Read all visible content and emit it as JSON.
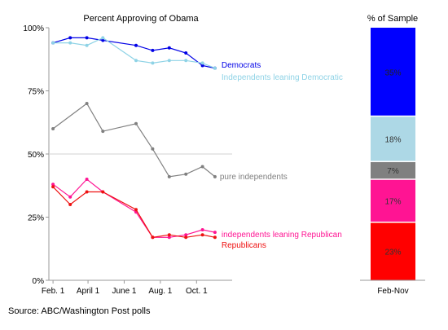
{
  "chart_data": [
    {
      "type": "line",
      "title": "Percent Approving of Obama",
      "xlabel": "",
      "ylabel": "",
      "x_tick_labels": [
        "Feb. 1",
        "April 1",
        "June 1",
        "Aug. 1",
        "Oct. 1"
      ],
      "x_ticks": [
        "2009-02-01",
        "2009-04-01",
        "2009-06-01",
        "2009-08-01",
        "2009-10-01"
      ],
      "xlim": [
        "2009-01-25",
        "2009-11-30"
      ],
      "y_tick_labels": [
        "0%",
        "25%",
        "50%",
        "75%",
        "100%"
      ],
      "ylim": [
        0,
        100
      ],
      "grid": "horizontal line at 50%",
      "legend": "inline labels at line ends",
      "series": [
        {
          "name": "Democrats",
          "color": "#0000e6",
          "x": [
            "2009-02-01",
            "2009-03-02",
            "2009-03-30",
            "2009-04-26",
            "2009-06-21",
            "2009-07-19",
            "2009-08-16",
            "2009-09-13",
            "2009-10-11",
            "2009-11-01"
          ],
          "y": [
            94,
            96,
            96,
            95,
            93,
            91,
            92,
            90,
            85,
            84
          ]
        },
        {
          "name": "Independents leaning Democratic",
          "color": "#8fd3e6",
          "x": [
            "2009-02-01",
            "2009-03-02",
            "2009-03-30",
            "2009-04-26",
            "2009-06-21",
            "2009-07-19",
            "2009-08-16",
            "2009-09-13",
            "2009-10-11",
            "2009-11-01"
          ],
          "y": [
            94,
            94,
            93,
            96,
            87,
            86,
            87,
            87,
            86,
            84
          ]
        },
        {
          "name": "pure independents",
          "color": "#808080",
          "x": [
            "2009-02-01",
            "2009-03-30",
            "2009-04-26",
            "2009-06-21",
            "2009-07-19",
            "2009-08-16",
            "2009-09-13",
            "2009-10-11",
            "2009-11-01"
          ],
          "y": [
            60,
            70,
            59,
            62,
            52,
            41,
            42,
            45,
            41
          ]
        },
        {
          "name": "independents leaning Republican",
          "color": "#ff1493",
          "x": [
            "2009-02-01",
            "2009-03-02",
            "2009-03-30",
            "2009-04-26",
            "2009-06-21",
            "2009-07-19",
            "2009-08-16",
            "2009-09-13",
            "2009-10-11",
            "2009-11-01"
          ],
          "y": [
            38,
            33,
            40,
            35,
            27,
            17,
            17,
            18,
            20,
            19
          ]
        },
        {
          "name": "Republicans",
          "color": "#ee1111",
          "x": [
            "2009-02-01",
            "2009-03-02",
            "2009-03-30",
            "2009-04-26",
            "2009-06-21",
            "2009-07-19",
            "2009-08-16",
            "2009-09-13",
            "2009-10-11",
            "2009-11-01"
          ],
          "y": [
            37,
            30,
            35,
            35,
            28,
            17,
            18,
            17,
            18,
            17
          ]
        }
      ]
    },
    {
      "type": "bar",
      "stacked": true,
      "title": "% of Sample",
      "categories": [
        "Feb-Nov"
      ],
      "ylim": [
        0,
        100
      ],
      "segments": [
        {
          "label": "23%",
          "value": 23,
          "color": "#ff0000"
        },
        {
          "label": "17%",
          "value": 17,
          "color": "#ff1493"
        },
        {
          "label": "7%",
          "value": 7,
          "color": "#808080"
        },
        {
          "label": "18%",
          "value": 18,
          "color": "#add8e6"
        },
        {
          "label": "35%",
          "value": 35,
          "color": "#0000ff"
        }
      ]
    }
  ],
  "source": "Source: ABC/Washington Post polls"
}
